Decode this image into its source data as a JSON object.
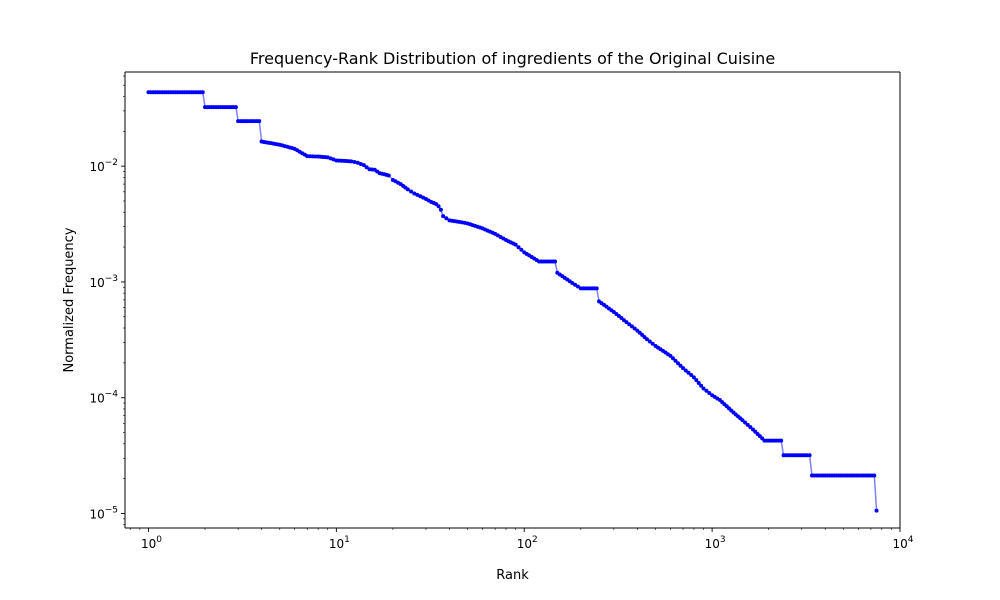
{
  "chart_data": {
    "type": "line",
    "title": "Frequency-Rank Distribution of ingredients of the Original Cuisine",
    "xlabel": "Rank",
    "ylabel": "Normalized Frequency",
    "xscale": "log",
    "yscale": "log",
    "xlim": [
      0.75,
      10000
    ],
    "ylim": [
      7.5e-06,
      0.065
    ],
    "grid": false,
    "line_color": "#7f7fff",
    "marker_color": "#0000ff",
    "x_ticks": [
      {
        "value": 1,
        "base": "10",
        "exp": "0"
      },
      {
        "value": 10,
        "base": "10",
        "exp": "1"
      },
      {
        "value": 100,
        "base": "10",
        "exp": "2"
      },
      {
        "value": 1000,
        "base": "10",
        "exp": "3"
      },
      {
        "value": 10000,
        "base": "10",
        "exp": "4"
      }
    ],
    "y_ticks": [
      {
        "value": 0.01,
        "base": "10",
        "exp": "−2"
      },
      {
        "value": 0.001,
        "base": "10",
        "exp": "−3"
      },
      {
        "value": 0.0001,
        "base": "10",
        "exp": "−4"
      },
      {
        "value": 1e-05,
        "base": "10",
        "exp": "−5"
      }
    ],
    "series": [
      {
        "points": [
          [
            1,
            0.0435
          ],
          [
            2,
            0.0323
          ],
          [
            3,
            0.0245
          ],
          [
            4,
            0.0163
          ],
          [
            5,
            0.0153
          ],
          [
            6,
            0.0141
          ],
          [
            7,
            0.0122
          ],
          [
            8,
            0.0121
          ],
          [
            9,
            0.0119
          ],
          [
            10,
            0.0112
          ],
          [
            11,
            0.0111
          ],
          [
            12,
            0.011
          ],
          [
            13,
            0.0107
          ],
          [
            14,
            0.0102
          ],
          [
            15,
            0.0094
          ],
          [
            16,
            0.0093
          ],
          [
            17,
            0.0087
          ],
          [
            18,
            0.0085
          ],
          [
            19,
            0.0083
          ],
          [
            20,
            0.0076
          ],
          [
            22,
            0.007
          ],
          [
            24,
            0.0063
          ],
          [
            26,
            0.0058
          ],
          [
            28,
            0.0055
          ],
          [
            30,
            0.0052
          ],
          [
            32,
            0.0049
          ],
          [
            34,
            0.0047
          ],
          [
            35,
            0.0045
          ],
          [
            36,
            0.0042
          ],
          [
            37,
            0.0037
          ],
          [
            40,
            0.0034
          ],
          [
            45,
            0.0033
          ],
          [
            50,
            0.0032
          ],
          [
            60,
            0.0029
          ],
          [
            70,
            0.0026
          ],
          [
            80,
            0.0023
          ],
          [
            90,
            0.0021
          ],
          [
            100,
            0.0018
          ],
          [
            120,
            0.0015
          ],
          [
            150,
            0.0012
          ],
          [
            180,
            0.00098
          ],
          [
            200,
            0.00088
          ],
          [
            250,
            0.00068
          ],
          [
            300,
            0.00055
          ],
          [
            350,
            0.00045
          ],
          [
            400,
            0.00038
          ],
          [
            450,
            0.00032
          ],
          [
            500,
            0.00028
          ],
          [
            600,
            0.00023
          ],
          [
            700,
            0.00018
          ],
          [
            800,
            0.00015
          ],
          [
            900,
            0.00012
          ],
          [
            1000,
            0.000105
          ],
          [
            1100,
            9.55e-05
          ],
          [
            1300,
            7.45e-05
          ],
          [
            1450,
            6.4e-05
          ],
          [
            1650,
            5.32e-05
          ],
          [
            1900,
            4.26e-05
          ],
          [
            2400,
            3.19e-05
          ],
          [
            3400,
            2.13e-05
          ],
          [
            7500,
            1.06e-05
          ]
        ]
      }
    ]
  }
}
